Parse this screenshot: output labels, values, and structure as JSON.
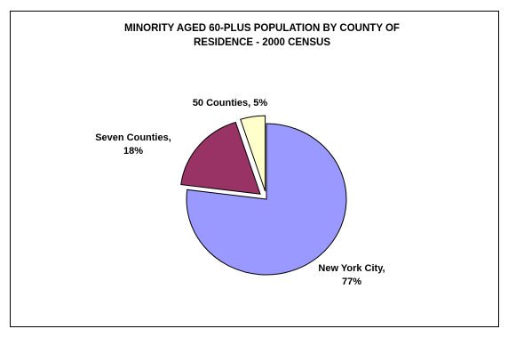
{
  "chart_data": {
    "type": "pie",
    "title": [
      "MINORITY AGED 60-PLUS POPULATION  BY COUNTY OF",
      "RESIDENCE - 2000 CENSUS"
    ],
    "slices": [
      {
        "label": [
          "New York City,",
          "77%"
        ],
        "value": 77,
        "color": "#9999ff",
        "exploded": false
      },
      {
        "label": [
          "Seven Counties,",
          "18%"
        ],
        "value": 18,
        "color": "#993366",
        "exploded": true
      },
      {
        "label": [
          "50 Counties, 5%"
        ],
        "value": 5,
        "color": "#ffffcc",
        "exploded": true
      }
    ]
  }
}
